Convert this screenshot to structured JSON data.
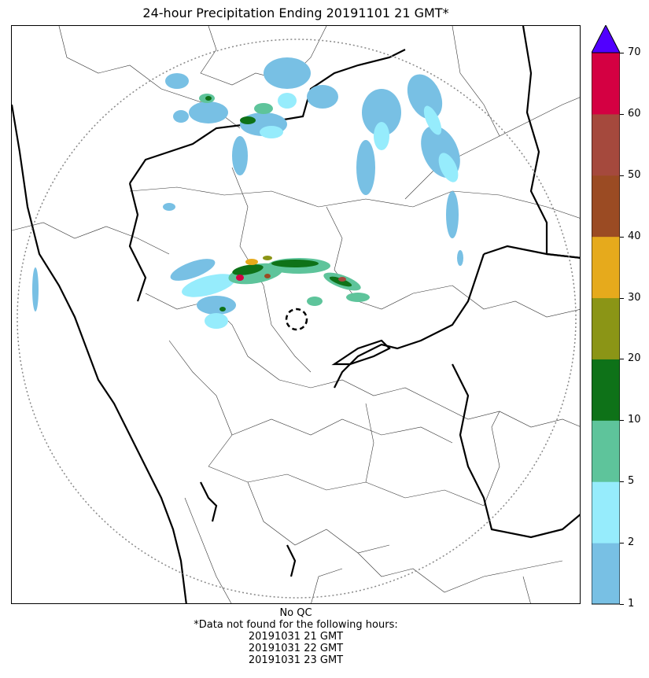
{
  "title": "24-hour Precipitation Ending 20191101 21 GMT*",
  "footer": {
    "qc": "No QC",
    "note": "*Data not found for the following hours:",
    "missing_hours": [
      "20191031 21 GMT",
      "20191031 22 GMT",
      "20191031 23 GMT"
    ]
  },
  "colorbar": {
    "ticks": [
      "1",
      "2",
      "5",
      "10",
      "20",
      "30",
      "40",
      "50",
      "60",
      "70"
    ],
    "colors": [
      "#78c0e4",
      "#96ecfc",
      "#5ec49b",
      "#0e7218",
      "#8b9516",
      "#e6aa1c",
      "#9b4b23",
      "#a5493d",
      "#d40042"
    ],
    "over_color": "#5100ff"
  },
  "map": {
    "range_ring_color": "#888888",
    "radar_site": "radar-site-marker"
  }
}
